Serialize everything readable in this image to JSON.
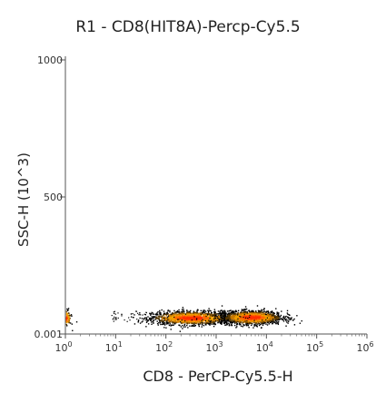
{
  "chart_data": {
    "type": "scatter",
    "title": "R1 - CD8(HIT8A)-Percp-Cy5.5",
    "xlabel": "CD8 - PerCP-Cy5.5-H",
    "ylabel": "SSC-H (10^3)",
    "x_scale": "log",
    "xlim": [
      1,
      1000000
    ],
    "ylim": [
      0.001,
      1000
    ],
    "x_ticks": [
      {
        "value": 1,
        "label": "10",
        "sup": "0"
      },
      {
        "value": 10,
        "label": "10",
        "sup": "1"
      },
      {
        "value": 100,
        "label": "10",
        "sup": "2"
      },
      {
        "value": 1000,
        "label": "10",
        "sup": "3"
      },
      {
        "value": 10000,
        "label": "10",
        "sup": "4"
      },
      {
        "value": 100000,
        "label": "10",
        "sup": "5"
      },
      {
        "value": 1000000,
        "label": "10",
        "sup": "6"
      }
    ],
    "y_ticks": [
      {
        "value": 0.001,
        "label": "0.001"
      },
      {
        "value": 500,
        "label": "500"
      },
      {
        "value": 1000,
        "label": "1000"
      }
    ],
    "grid": false,
    "legend": "none",
    "density_colors": [
      "#000000",
      "#5a3a00",
      "#c87800",
      "#f0a000",
      "#ff6a00",
      "#ff3000"
    ],
    "populations": [
      {
        "x_center_log": 2.5,
        "x_spread_log": 0.4,
        "y_center": 60,
        "y_spread": 12,
        "density": "high"
      },
      {
        "x_center_log": 3.7,
        "x_spread_log": 0.3,
        "y_center": 62,
        "y_spread": 12,
        "density": "high"
      },
      {
        "x_center_log": 0.0,
        "x_spread_log": 0.05,
        "y_center": 60,
        "y_spread": 15,
        "density": "medium"
      }
    ]
  }
}
